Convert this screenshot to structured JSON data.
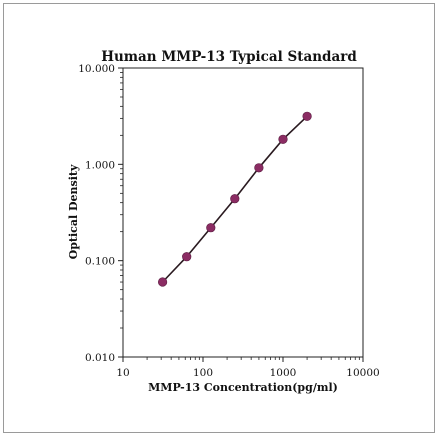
{
  "chart_data": {
    "type": "line",
    "title": "Human  MMP-13 Typical Standard",
    "xlabel": "MMP-13  Concentration(pg/ml)",
    "ylabel": "Optical Density",
    "x_scale": "log",
    "y_scale": "log",
    "xlim": [
      10,
      10000
    ],
    "ylim": [
      0.01,
      10
    ],
    "x_ticks": [
      10,
      100,
      1000,
      10000
    ],
    "x_tick_labels": [
      "10",
      "100",
      "1000",
      "10000"
    ],
    "y_ticks": [
      0.01,
      0.1,
      1,
      10
    ],
    "y_tick_labels": [
      "0.010",
      "0.100",
      "1.000",
      "10.000"
    ],
    "grid": false,
    "series": [
      {
        "x": [
          31.25,
          62.5,
          125,
          250,
          500,
          1000,
          2000
        ],
        "y": [
          0.06,
          0.11,
          0.22,
          0.44,
          0.92,
          1.82,
          3.15
        ],
        "marker_color": "#8b2c63",
        "line_color": "#2a1a20"
      }
    ]
  }
}
